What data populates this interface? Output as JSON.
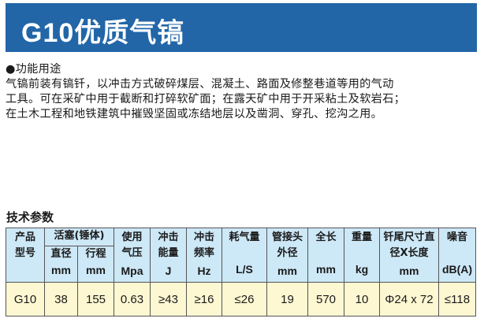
{
  "title": "G10优质气镐",
  "function": {
    "heading": "●功能用途",
    "lines": [
      "气镐前装有镐钎，以冲击方式破碎煤层、混凝土、路面及修整巷道等用的气动",
      "工具。可在采矿中用于截断和打碎软矿面；在露天矿中用于开采粘土及软岩石；",
      "在土木工程和地铁建筑中摧毁坚固或冻结地层以及凿洞、穿孔、挖沟之用。"
    ]
  },
  "spec": {
    "heading": "技术参数",
    "headers": {
      "model": "产品型号",
      "piston": "活塞(锤体)",
      "diameter": "直径",
      "diameter_unit": "mm",
      "stroke": "行程",
      "stroke_unit": "mm",
      "pressure": "使用气压",
      "pressure_unit": "Mpa",
      "energy": "冲击能量",
      "energy_unit": "J",
      "frequency": "冲击频率",
      "frequency_unit": "Hz",
      "air": "耗气量",
      "air_unit": "L/S",
      "hose": "管接头外径",
      "hose_unit": "mm",
      "length": "全长",
      "length_unit": "mm",
      "weight": "重量",
      "weight_unit": "kg",
      "shank": "钎尾尺寸直径X长度",
      "shank_unit": "mm",
      "noise": "噪音",
      "noise_unit": "dB(A)"
    },
    "row": {
      "model": "G10",
      "diameter": "38",
      "stroke": "155",
      "pressure": "0.63",
      "energy": "≥43",
      "frequency": "≥16",
      "air": "≤26",
      "hose": "19",
      "length": "570",
      "weight": "10",
      "shank": "Φ24 x 72",
      "noise": "≤118"
    }
  }
}
